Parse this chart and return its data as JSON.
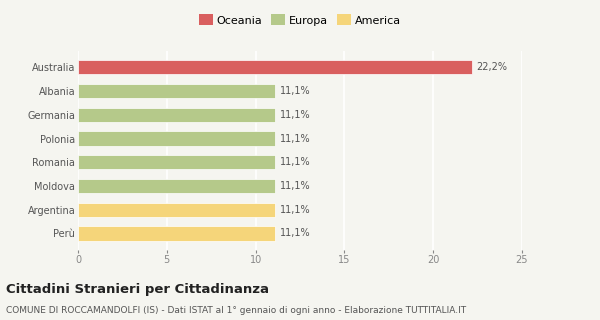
{
  "categories": [
    "Perù",
    "Argentina",
    "Moldova",
    "Romania",
    "Polonia",
    "Germania",
    "Albania",
    "Australia"
  ],
  "values": [
    11.1,
    11.1,
    11.1,
    11.1,
    11.1,
    11.1,
    11.1,
    22.2
  ],
  "colors": [
    "#f5d57a",
    "#f5d57a",
    "#b5c98a",
    "#b5c98a",
    "#b5c98a",
    "#b5c98a",
    "#b5c98a",
    "#d95f5f"
  ],
  "labels": [
    "11,1%",
    "11,1%",
    "11,1%",
    "11,1%",
    "11,1%",
    "11,1%",
    "11,1%",
    "22,2%"
  ],
  "legend": [
    {
      "label": "Oceania",
      "color": "#d95f5f"
    },
    {
      "label": "Europa",
      "color": "#b5c98a"
    },
    {
      "label": "America",
      "color": "#f5d57a"
    }
  ],
  "xlim": [
    0,
    25
  ],
  "xticks": [
    0,
    5,
    10,
    15,
    20,
    25
  ],
  "title": "Cittadini Stranieri per Cittadinanza",
  "subtitle": "COMUNE DI ROCCAMANDOLFI (IS) - Dati ISTAT al 1° gennaio di ogni anno - Elaborazione TUTTITALIA.IT",
  "bg_color": "#f5f5f0",
  "title_fontsize": 9.5,
  "subtitle_fontsize": 6.5,
  "label_fontsize": 7,
  "tick_fontsize": 7,
  "legend_fontsize": 8
}
